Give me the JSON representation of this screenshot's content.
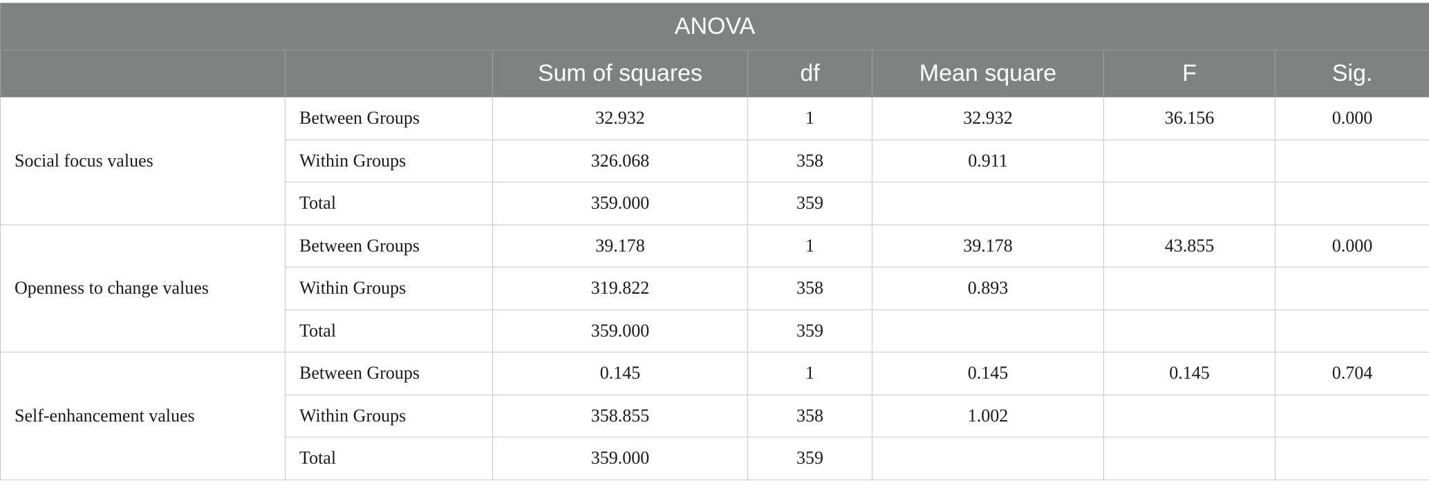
{
  "table": {
    "title": "ANOVA",
    "headers": [
      "",
      "",
      "Sum of squares",
      "df",
      "Mean square",
      "F",
      "Sig."
    ],
    "groups": [
      {
        "label": "Social focus values",
        "rows": [
          {
            "source": "Between Groups",
            "ss": "32.932",
            "df": "1",
            "ms": "32.932",
            "f": "36.156",
            "sig": "0.000"
          },
          {
            "source": "Within Groups",
            "ss": "326.068",
            "df": "358",
            "ms": "0.911",
            "f": "",
            "sig": ""
          },
          {
            "source": "Total",
            "ss": "359.000",
            "df": "359",
            "ms": "",
            "f": "",
            "sig": ""
          }
        ]
      },
      {
        "label": "Openness to change values",
        "rows": [
          {
            "source": "Between Groups",
            "ss": "39.178",
            "df": "1",
            "ms": "39.178",
            "f": "43.855",
            "sig": "0.000"
          },
          {
            "source": "Within Groups",
            "ss": "319.822",
            "df": "358",
            "ms": "0.893",
            "f": "",
            "sig": ""
          },
          {
            "source": "Total",
            "ss": "359.000",
            "df": "359",
            "ms": "",
            "f": "",
            "sig": ""
          }
        ]
      },
      {
        "label": "Self-enhancement values",
        "rows": [
          {
            "source": "Between Groups",
            "ss": "0.145",
            "df": "1",
            "ms": "0.145",
            "f": "0.145",
            "sig": "0.704"
          },
          {
            "source": "Within Groups",
            "ss": "358.855",
            "df": "358",
            "ms": "1.002",
            "f": "",
            "sig": ""
          },
          {
            "source": "Total",
            "ss": "359.000",
            "df": "359",
            "ms": "",
            "f": "",
            "sig": ""
          }
        ]
      }
    ]
  }
}
